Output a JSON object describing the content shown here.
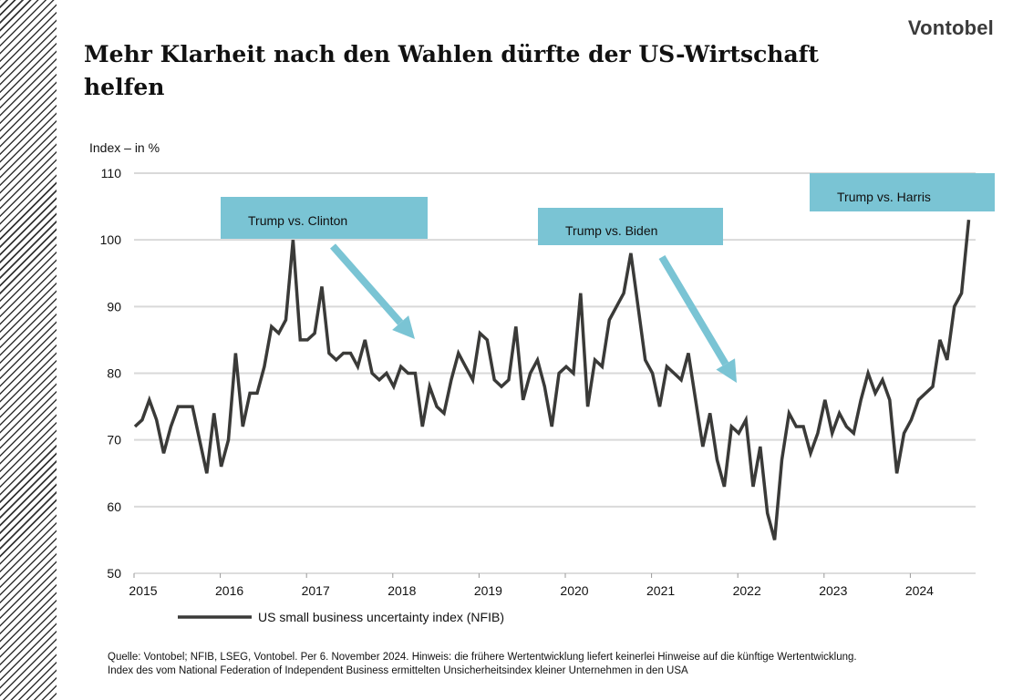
{
  "brand": "Vontobel",
  "title": "Mehr Klarheit nach den Wahlen dürfte der US-Wirtschaft helfen",
  "footnote": [
    "Quelle: Vontobel; NFIB, LSEG, Vontobel. Per 6. November 2024. Hinweis: die frühere Wertentwicklung liefert keinerlei Hinweise auf die künftige Wertentwicklung.",
    "Index des vom National Federation of Independent Business ermittelten Unsicherheitsindex kleiner Unternehmen in den USA"
  ],
  "colors": {
    "line": "#3a3a38",
    "annotation": "#7ac4d4",
    "grid": "#d9d9d9"
  },
  "chart_data": {
    "type": "line",
    "ylabel": "Index – in %",
    "ylim": [
      50,
      110
    ],
    "yticks": [
      50,
      60,
      70,
      80,
      90,
      100,
      110
    ],
    "xticks": [
      "2015",
      "2016",
      "2017",
      "2018",
      "2019",
      "2020",
      "2021",
      "2022",
      "2023",
      "2024"
    ],
    "x_start": "2015-01",
    "x_frequency": "monthly",
    "grid": true,
    "legend": "bottom-left",
    "series": [
      {
        "name": "US small business uncertainty index (NFIB)",
        "values": [
          72,
          73,
          76,
          73,
          68,
          72,
          75,
          75,
          75,
          70,
          65,
          74,
          66,
          70,
          83,
          72,
          77,
          77,
          81,
          87,
          86,
          88,
          100,
          85,
          85,
          86,
          93,
          83,
          82,
          83,
          83,
          81,
          85,
          80,
          79,
          80,
          78,
          81,
          80,
          80,
          72,
          78,
          75,
          74,
          79,
          83,
          81,
          79,
          86,
          85,
          79,
          78,
          79,
          87,
          76,
          80,
          82,
          78,
          72,
          80,
          81,
          80,
          92,
          75,
          82,
          81,
          88,
          90,
          92,
          98,
          90,
          82,
          80,
          75,
          81,
          80,
          79,
          83,
          76,
          69,
          74,
          67,
          63,
          72,
          71,
          73,
          63,
          69,
          59,
          55,
          67,
          74,
          72,
          72,
          68,
          71,
          76,
          71,
          74,
          72,
          71,
          76,
          80,
          77,
          79,
          76,
          65,
          71,
          73,
          76,
          77,
          78,
          85,
          82,
          90,
          92,
          103
        ]
      }
    ],
    "annotations": [
      {
        "label": "Trump  vs. Clinton",
        "year": "2016",
        "arrow": "down-right"
      },
      {
        "label": "Trump  vs. Biden",
        "year": "2020",
        "arrow": "down-right"
      },
      {
        "label": "Trump  vs. Harris",
        "year": "2024",
        "arrow": "none"
      }
    ]
  }
}
